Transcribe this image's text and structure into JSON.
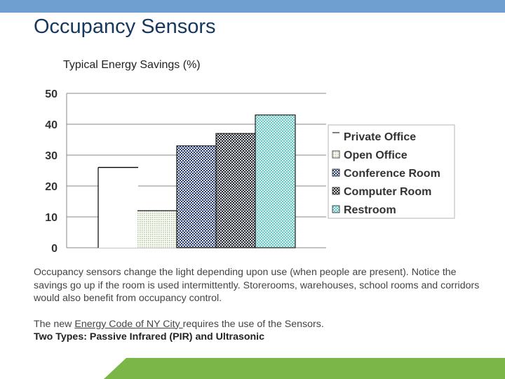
{
  "slide": {
    "title": "Occupancy Sensors",
    "paragraph1": "Occupancy sensors change the light depending upon use (when people are present). Notice the savings go up if the room is used intermittently. Storerooms, warehouses, school rooms and corridors would also benefit from occupancy control.",
    "paragraph2_prefix": "The new ",
    "paragraph2_link": "Energy Code of NY City ",
    "paragraph2_suffix": "requires the use of the Sensors.",
    "paragraph3": "Two Types: Passive Infrared (PIR) and Ultrasonic"
  },
  "colors": {
    "top_bar": "#6f9fd0",
    "title": "#17375e",
    "bottom_band": "#7ab648"
  },
  "chart_data": {
    "type": "bar",
    "title": "Typical Energy Savings (%)",
    "xlabel": "",
    "ylabel": "",
    "ylim": [
      0,
      50
    ],
    "yticks": [
      "0",
      "10",
      "20",
      "30",
      "40",
      "50"
    ],
    "grid": true,
    "legend_position": "right",
    "series": [
      {
        "name": "Private Office",
        "values": [
          26
        ],
        "fill": "white"
      },
      {
        "name": "Open Office",
        "values": [
          12
        ],
        "fill": "dotted-green"
      },
      {
        "name": "Conference Room",
        "values": [
          33
        ],
        "fill": "checker-navy"
      },
      {
        "name": "Computer Room",
        "values": [
          37
        ],
        "fill": "checker-dark"
      },
      {
        "name": "Restroom",
        "values": [
          43
        ],
        "fill": "checker-teal"
      }
    ]
  }
}
